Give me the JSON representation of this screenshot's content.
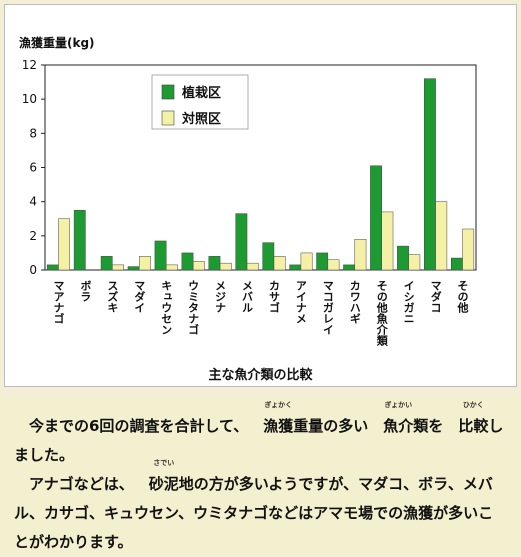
{
  "chart_data": {
    "type": "bar",
    "ylabel": "漁獲重量(kg)",
    "xlabel": "主な魚介類の比較",
    "ylim": [
      0,
      12
    ],
    "yticks": [
      0,
      2,
      4,
      6,
      8,
      10,
      12
    ],
    "grid": false,
    "legend_placement": "top-left",
    "categories": [
      "マアナゴ",
      "ボラ",
      "スズキ",
      "マダイ",
      "キュウセン",
      "ウミタナゴ",
      "メジナ",
      "メバル",
      "カサゴ",
      "アイナメ",
      "マコガレイ",
      "カワハギ",
      "その他魚介類",
      "イシガニ",
      "マダコ",
      "その他"
    ],
    "series": [
      {
        "name": "植栽区",
        "color": "#1e9a32",
        "values": [
          0.3,
          3.5,
          0.8,
          0.2,
          1.7,
          1.0,
          0.8,
          3.3,
          1.6,
          0.3,
          1.0,
          0.3,
          6.1,
          1.4,
          11.2,
          0.7
        ]
      },
      {
        "name": "対照区",
        "color": "#f4f0a6",
        "values": [
          3.0,
          0.0,
          0.3,
          0.8,
          0.3,
          0.5,
          0.4,
          0.4,
          0.8,
          1.0,
          0.6,
          1.8,
          3.4,
          0.9,
          4.0,
          2.4
        ]
      }
    ]
  },
  "text": {
    "p1": [
      {
        "t": "今までの6回の調査を合計して、"
      },
      {
        "t": "漁獲",
        "r": "ぎょかく"
      },
      {
        "t": "重量の多い"
      },
      {
        "t": "魚介",
        "r": "ぎょかい"
      },
      {
        "t": "類を"
      },
      {
        "t": "比較",
        "r": "ひかく"
      },
      {
        "t": "しました。"
      }
    ],
    "p2": [
      {
        "t": "アナゴなどは、"
      },
      {
        "t": "砂泥",
        "r": "さでい"
      },
      {
        "t": "地の方が多いようですが、マダコ、ボラ、メバル、カサゴ、キュウセン、ウミタナゴなどはアマモ場での漁獲が多いことがわかります。"
      }
    ]
  }
}
